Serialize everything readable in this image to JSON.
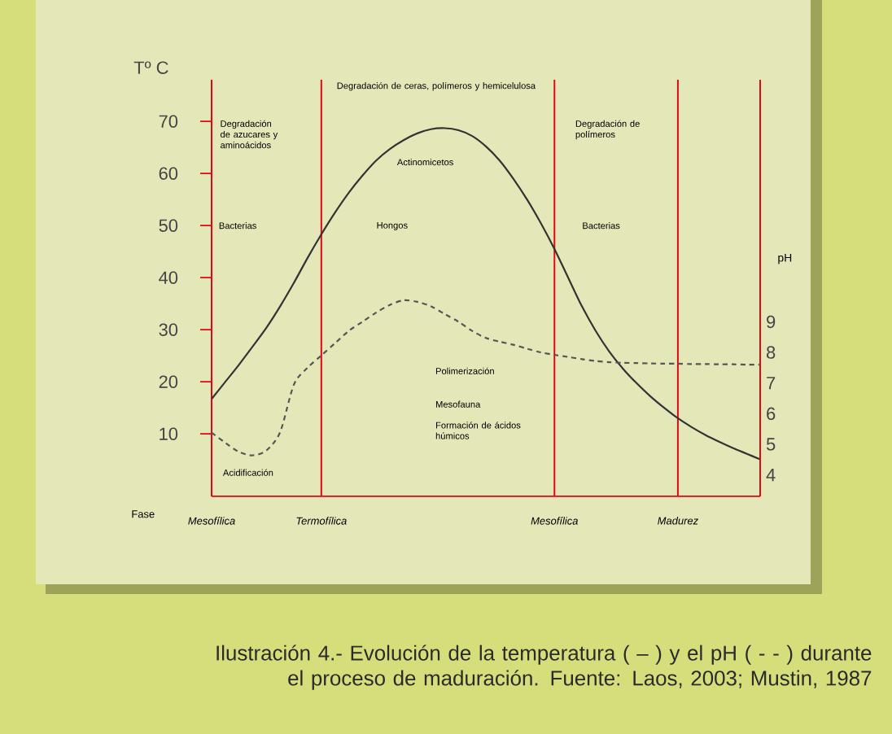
{
  "chart_data": {
    "type": "line",
    "xlabel": "Fase",
    "ylabel": "Tº C",
    "y2label": "pH",
    "categories": [
      "Mesofílica",
      null,
      null,
      null,
      null,
      null,
      null,
      null,
      "Termofílica",
      null,
      null,
      null,
      null,
      null,
      null,
      null,
      null,
      null,
      null,
      null,
      null,
      null,
      null,
      null,
      null,
      "Mesofílica",
      null,
      null,
      null,
      null,
      null,
      null,
      null,
      null,
      "Madurez",
      null,
      null,
      null,
      null,
      null,
      null
    ],
    "ylim": [
      -2,
      78
    ],
    "yticks": [
      10,
      20,
      30,
      40,
      50,
      60,
      70
    ],
    "y2lim": [
      3.3,
      16.9
    ],
    "y2ticks": [
      4,
      5,
      6,
      7,
      8,
      9
    ],
    "series": [
      {
        "values": [
          16.7,
          20.0,
          23.3,
          26.8,
          30.4,
          34.5,
          39.0,
          43.8,
          48.3,
          52.5,
          56.3,
          59.6,
          62.5,
          64.7,
          66.4,
          67.7,
          68.5,
          68.7,
          68.3,
          67.2,
          65.2,
          62.5,
          59.0,
          55.0,
          50.5,
          45.5,
          40.0,
          34.5,
          29.8,
          25.8,
          22.5,
          19.7,
          17.2,
          15.0,
          13.0,
          11.3,
          9.8,
          8.5,
          7.3,
          6.2,
          5.1
        ],
        "color": "#333333",
        "line_style": "solid"
      },
      {
        "values": [
          5.38,
          5.05,
          4.75,
          4.64,
          4.8,
          5.4,
          6.95,
          7.5,
          7.9,
          8.3,
          8.7,
          9.0,
          9.3,
          9.55,
          9.7,
          9.65,
          9.5,
          9.25,
          9.0,
          8.7,
          8.47,
          8.35,
          8.25,
          8.12,
          8.0,
          7.92,
          7.85,
          7.78,
          7.72,
          7.68,
          7.66,
          7.65,
          7.64,
          7.63,
          7.63,
          7.62,
          7.62,
          7.61,
          7.61,
          7.6,
          7.6
        ],
        "color": "#555555",
        "line_style": "dashed",
        "axis": "y2"
      }
    ],
    "grid": "x",
    "annotations": [
      "Degradación de azucares y aminoácidos",
      "Degradación de ceras, polímeros y hemicelulosa",
      "Degradación de polímeros",
      "Actinomicetos",
      "Bacterias",
      "Hongos",
      "Bacterias",
      "Acidificación",
      "Polimerización",
      "Mesofauna",
      "Formación de ácidos húmicos",
      "Ilustración 4.- Evolución de la temperatura ( – ) y el pH ( - - ) durante el proceso de maduración. Fuente: Laos, 2003; Mustin, 1987"
    ]
  }
}
